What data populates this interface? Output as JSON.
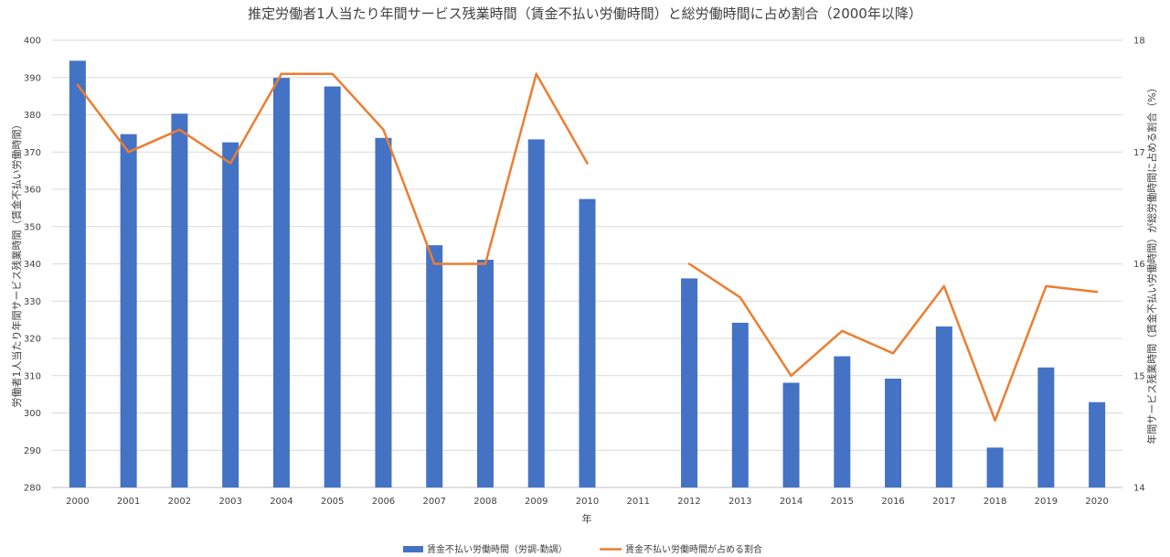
{
  "chart_data": {
    "type": "bar",
    "title": "推定労働者1人当たり年間サービス残業時間（賃金不払い労働時間）と総労働時間に占め割合（2000年以降）",
    "xlabel": "年",
    "ylabel": "労働者1人当たり年間サービス残業時間（賃金不払い労働時間）",
    "y2label": "年間サービス残業時間（賃金不払い労働時間）が総労働時間に占める割合（%）",
    "categories": [
      "2000",
      "2001",
      "2002",
      "2003",
      "2004",
      "2005",
      "2006",
      "2007",
      "2008",
      "2009",
      "2010",
      "2011",
      "2012",
      "2013",
      "2014",
      "2015",
      "2016",
      "2017",
      "2018",
      "2019",
      "2020"
    ],
    "ylim": [
      280,
      400
    ],
    "y2lim": [
      14,
      18
    ],
    "yticks": [
      280,
      290,
      300,
      310,
      320,
      330,
      340,
      350,
      360,
      370,
      380,
      390,
      400
    ],
    "y2ticks": [
      14,
      15,
      16,
      17,
      18
    ],
    "grid": true,
    "legend_position": "bottom",
    "series": [
      {
        "name": "賃金不払い労働時間（労調-勤調）",
        "kind": "bar",
        "axis": "left",
        "color": "#4472C4",
        "values": [
          394.5,
          374.8,
          380.3,
          372.6,
          389.9,
          387.6,
          373.8,
          345.0,
          341.1,
          373.4,
          357.4,
          null,
          336.1,
          324.2,
          308.1,
          315.2,
          309.2,
          323.2,
          290.7,
          312.2,
          302.9
        ]
      },
      {
        "name": "賃金不払い労働時間が占める割合",
        "kind": "line",
        "axis": "right",
        "color": "#ED7D31",
        "values": [
          17.6,
          17.0,
          17.2,
          16.9,
          17.7,
          17.7,
          17.2,
          16.0,
          16.0,
          17.7,
          16.9,
          null,
          16.0,
          15.7,
          15.0,
          15.4,
          15.2,
          15.8,
          14.6,
          15.8,
          15.75
        ]
      }
    ]
  }
}
